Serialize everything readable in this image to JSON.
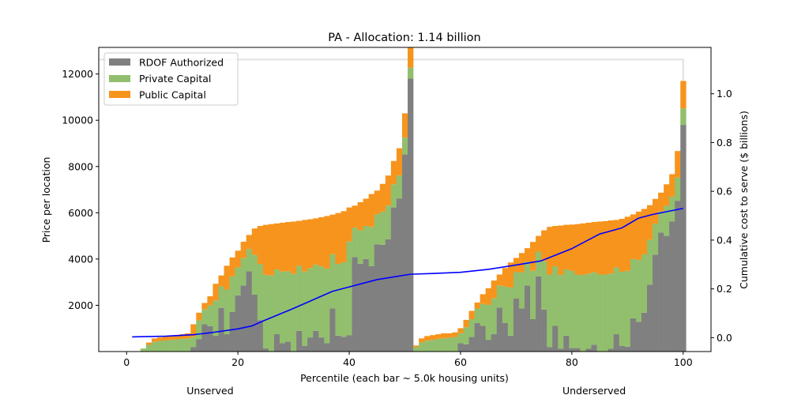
{
  "chart_data": {
    "type": "bar",
    "subtype": "stacked-bar-with-cumulative-line",
    "title": "PA - Allocation: 1.14 billion",
    "xlabel": "Percentile (each bar ~ 5.0k housing units)",
    "ylabel": "Price per location",
    "y2label": "Cumulative cost to serve ($ billions)",
    "group_labels": [
      {
        "label": "Unserved",
        "center_percentile": 15
      },
      {
        "label": "Underserved",
        "center_percentile": 84
      }
    ],
    "xlim": [
      -5,
      105
    ],
    "ylim": [
      0,
      13150
    ],
    "y2lim": [
      -0.057,
      1.19
    ],
    "x_ticks": [
      0,
      20,
      40,
      60,
      80,
      100
    ],
    "x_tick_labels": [
      "0",
      "20",
      "40",
      "60",
      "80",
      "100"
    ],
    "y_ticks": [
      2000,
      4000,
      6000,
      8000,
      10000,
      12000
    ],
    "y_tick_labels": [
      "2000",
      "4000",
      "6000",
      "8000",
      "10000",
      "12000"
    ],
    "y2_ticks": [
      0.0,
      0.2,
      0.4,
      0.6,
      0.8,
      1.0
    ],
    "y2_tick_labels": [
      "0.0",
      "0.2",
      "0.4",
      "0.6",
      "0.8",
      "1.0"
    ],
    "legend": {
      "position": "top-left",
      "entries": [
        {
          "label": "RDOF Authorized",
          "color": "#808080"
        },
        {
          "label": "Private Capital",
          "color": "#92bf6d"
        },
        {
          "label": "Public Capital",
          "color": "#f7941d"
        }
      ]
    },
    "colors": {
      "rdof": "#808080",
      "private": "#92bf6d",
      "public": "#f7941d",
      "cumulative_line": "#0000ff",
      "budget_line": "#e0e0e0"
    },
    "series_order": [
      "RDOF Authorized",
      "Private Capital",
      "Public Capital"
    ],
    "bars": {
      "percentile": [
        3,
        4,
        5,
        6,
        7,
        8,
        9,
        10,
        11,
        12,
        13,
        14,
        15,
        16,
        17,
        18,
        19,
        20,
        21,
        22,
        23,
        24,
        25,
        26,
        27,
        28,
        29,
        30,
        31,
        32,
        33,
        34,
        35,
        36,
        37,
        38,
        39,
        40,
        41,
        42,
        43,
        44,
        45,
        46,
        47,
        48,
        49,
        50,
        51,
        52,
        53,
        54,
        55,
        56,
        57,
        58,
        59,
        60,
        61,
        62,
        63,
        64,
        65,
        66,
        67,
        68,
        69,
        70,
        71,
        72,
        73,
        74,
        75,
        76,
        77,
        78,
        79,
        80,
        81,
        82,
        83,
        84,
        85,
        86,
        87,
        88,
        89,
        90,
        91,
        92,
        93,
        94,
        95,
        96,
        97,
        98,
        99,
        100
      ],
      "rdof_authorized": [
        0,
        0,
        0,
        0,
        0,
        0,
        0,
        0,
        0,
        200,
        530,
        1180,
        1100,
        680,
        1890,
        750,
        1710,
        2430,
        2860,
        3470,
        2460,
        1360,
        140,
        0,
        750,
        360,
        430,
        0,
        890,
        250,
        610,
        890,
        610,
        360,
        1860,
        690,
        640,
        700,
        4080,
        3800,
        4000,
        3690,
        4640,
        4620,
        4860,
        6230,
        6620,
        8520,
        11800,
        0,
        0,
        0,
        0,
        0,
        0,
        0,
        0,
        360,
        310,
        630,
        1230,
        1110,
        510,
        750,
        1900,
        1230,
        690,
        2300,
        1860,
        2860,
        1400,
        3250,
        1820,
        190,
        1110,
        120,
        690,
        150,
        150,
        0,
        120,
        300,
        0,
        0,
        120,
        750,
        240,
        210,
        1440,
        1290,
        1680,
        2890,
        4190,
        5150,
        5000,
        5630,
        6520,
        9800
      ],
      "private_capital": [
        130,
        290,
        420,
        460,
        480,
        500,
        530,
        550,
        570,
        440,
        820,
        640,
        900,
        1530,
        930,
        1930,
        1540,
        1210,
        1180,
        960,
        1720,
        2430,
        3180,
        3290,
        2800,
        3100,
        3040,
        3360,
        2820,
        3210,
        3000,
        2870,
        3070,
        3220,
        2350,
        3100,
        3220,
        4060,
        1280,
        1440,
        1430,
        1700,
        1290,
        1430,
        1450,
        1000,
        990,
        730,
        470,
        190,
        390,
        470,
        510,
        550,
        570,
        600,
        630,
        430,
        740,
        770,
        630,
        950,
        1510,
        1550,
        960,
        1580,
        2080,
        1130,
        1570,
        1020,
        2090,
        1070,
        2080,
        3140,
        2580,
        3190,
        2860,
        3340,
        3180,
        3310,
        3250,
        3130,
        3330,
        3330,
        3250,
        2890,
        3210,
        3280,
        2560,
        2670,
        2520,
        1940,
        1340,
        910,
        1300,
        1070,
        1000,
        710
      ],
      "public_capital": [
        0,
        100,
        150,
        150,
        170,
        190,
        190,
        200,
        220,
        540,
        330,
        280,
        390,
        720,
        470,
        1030,
        820,
        720,
        710,
        610,
        1140,
        1640,
        2160,
        2220,
        1990,
        2110,
        2130,
        2260,
        1940,
        2230,
        2110,
        2000,
        2130,
        2280,
        1710,
        2200,
        2210,
        1470,
        950,
        1220,
        1180,
        1420,
        1030,
        1200,
        1300,
        1010,
        1180,
        1050,
        930,
        70,
        180,
        200,
        200,
        200,
        220,
        190,
        200,
        220,
        320,
        360,
        260,
        420,
        720,
        770,
        470,
        800,
        1080,
        620,
        830,
        590,
        1250,
        680,
        1340,
        2060,
        1740,
        2140,
        1930,
        2000,
        2180,
        2230,
        2200,
        2170,
        2290,
        2310,
        2300,
        2050,
        2290,
        2340,
        1930,
        2090,
        1970,
        1500,
        1070,
        810,
        930,
        970,
        1150,
        1190
      ]
    },
    "cumulative_cost_billions": {
      "percentile": [
        1,
        7,
        12,
        15,
        20,
        22.5,
        24.5,
        30,
        35,
        37,
        39.5,
        45,
        51,
        55,
        60,
        65,
        70,
        74.5,
        80,
        85,
        89,
        92,
        94.5,
        100
      ],
      "value": [
        0.003,
        0.006,
        0.012,
        0.02,
        0.036,
        0.048,
        0.068,
        0.12,
        0.17,
        0.19,
        0.205,
        0.238,
        0.26,
        0.263,
        0.268,
        0.28,
        0.298,
        0.315,
        0.365,
        0.425,
        0.45,
        0.49,
        0.505,
        0.53
      ]
    },
    "budget_line_billions": 1.14,
    "budget_line_end_percentile": 100
  }
}
